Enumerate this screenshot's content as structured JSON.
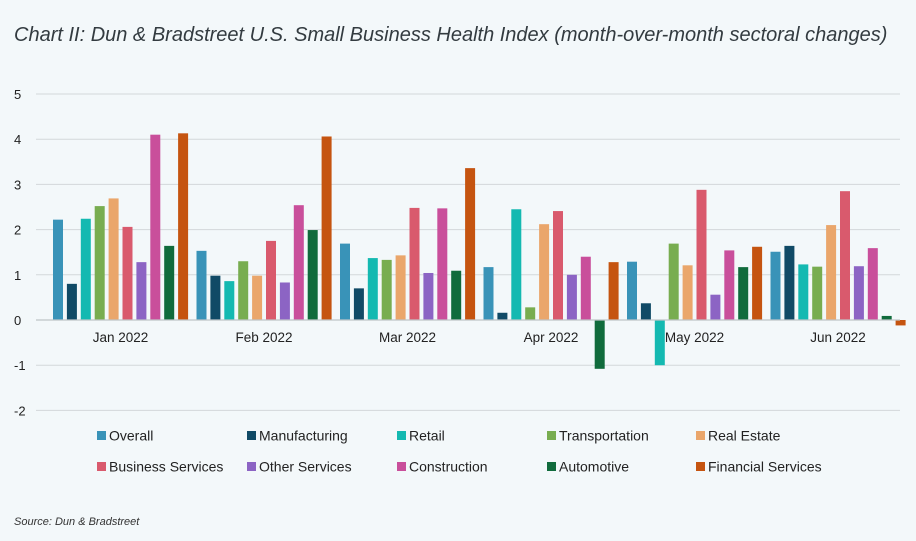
{
  "chart_data": {
    "type": "bar",
    "title": "Chart II: Dun & Bradstreet U.S. Small Business Health Index (month-over-month sectoral changes)",
    "source": "Source: Dun & Bradstreet",
    "xlabel": "",
    "ylabel": "",
    "ylim": [
      -2,
      5
    ],
    "yticks": [
      "5",
      "4",
      "3",
      "2",
      "1",
      "0",
      "-1",
      "-2"
    ],
    "ytick_values": [
      5,
      4,
      3,
      2,
      1,
      0,
      -1,
      -2
    ],
    "grid": true,
    "legend_position": "bottom",
    "categories": [
      "Jan 2022",
      "Feb 2022",
      "Mar 2022",
      "Apr 2022",
      "May 2022",
      "Jun 2022"
    ],
    "series": [
      {
        "name": "Overall",
        "color": "#3993b8",
        "values": [
          2.22,
          1.53,
          1.69,
          1.17,
          1.29,
          1.51
        ]
      },
      {
        "name": "Manufacturing",
        "color": "#104a66",
        "values": [
          0.8,
          0.98,
          0.7,
          0.16,
          0.37,
          1.64
        ]
      },
      {
        "name": "Retail",
        "color": "#14b9b1",
        "values": [
          2.24,
          0.86,
          1.37,
          2.45,
          -1.0,
          1.23
        ]
      },
      {
        "name": "Transportation",
        "color": "#78ad50",
        "values": [
          2.52,
          1.3,
          1.33,
          0.28,
          1.69,
          1.18
        ]
      },
      {
        "name": "Real Estate",
        "color": "#eaa66b",
        "values": [
          2.69,
          0.98,
          1.43,
          2.12,
          1.21,
          2.1
        ]
      },
      {
        "name": "Business Services",
        "color": "#d95a6d",
        "values": [
          2.06,
          1.75,
          2.48,
          2.41,
          2.88,
          2.85
        ]
      },
      {
        "name": "Other Services",
        "color": "#8c64c4",
        "values": [
          1.28,
          0.83,
          1.04,
          1.0,
          0.56,
          1.19
        ]
      },
      {
        "name": "Construction",
        "color": "#c94f9b",
        "values": [
          4.1,
          2.54,
          2.47,
          1.4,
          1.54,
          1.59
        ]
      },
      {
        "name": "Automotive",
        "color": "#106b3c",
        "values": [
          1.64,
          1.99,
          1.09,
          -1.08,
          1.17,
          0.09
        ]
      },
      {
        "name": "Financial Services",
        "color": "#c55410",
        "values": [
          4.13,
          4.06,
          3.36,
          1.28,
          1.62,
          -0.12
        ]
      }
    ]
  }
}
